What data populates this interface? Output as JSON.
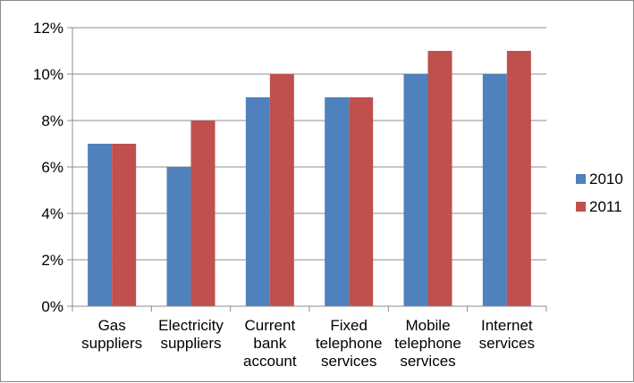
{
  "chart_data": {
    "type": "bar",
    "categories": [
      [
        "Gas",
        "suppliers"
      ],
      [
        "Electricity",
        "suppliers"
      ],
      [
        "Current",
        "bank",
        "account"
      ],
      [
        "Fixed",
        "telephone",
        "services"
      ],
      [
        "Mobile",
        "telephone",
        "services"
      ],
      [
        "Internet",
        "services"
      ]
    ],
    "series": [
      {
        "name": "2010",
        "color": "#4f81bd",
        "values": [
          7,
          6,
          9,
          9,
          10,
          10
        ]
      },
      {
        "name": "2011",
        "color": "#c0504d",
        "values": [
          7,
          8,
          10,
          9,
          11,
          11
        ]
      }
    ],
    "ylim": [
      0,
      12
    ],
    "yticks": [
      0,
      2,
      4,
      6,
      8,
      10,
      12
    ],
    "ytick_labels": [
      "0%",
      "2%",
      "4%",
      "6%",
      "8%",
      "10%",
      "12%"
    ],
    "grid": true,
    "legend_position": "right",
    "title": "",
    "xlabel": "",
    "ylabel": ""
  }
}
